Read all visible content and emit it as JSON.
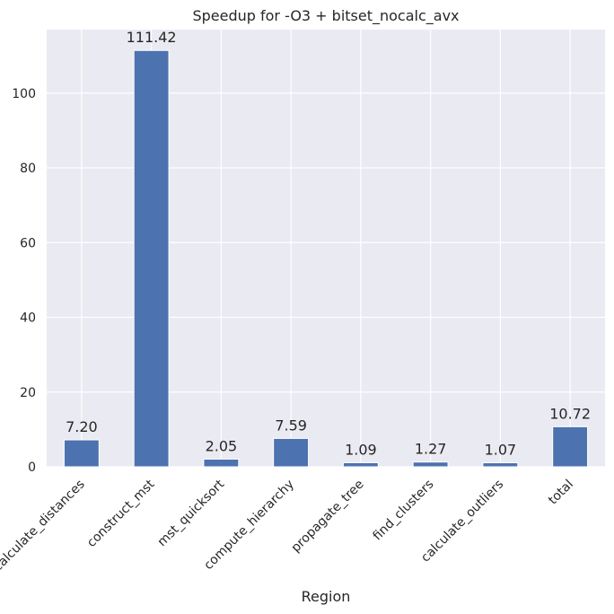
{
  "chart_data": {
    "type": "bar",
    "title": "Speedup for -O3 + bitset_nocalc_avx",
    "xlabel": "Region",
    "ylabel": "",
    "categories": [
      "calculate_distances",
      "construct_mst",
      "mst_quicksort",
      "compute_hierarchy",
      "propagate_tree",
      "find_clusters",
      "calculate_outliers",
      "total"
    ],
    "values": [
      7.2,
      111.42,
      2.05,
      7.59,
      1.09,
      1.27,
      1.07,
      10.72
    ],
    "data_labels": [
      "7.20",
      "111.42",
      "2.05",
      "7.59",
      "1.09",
      "1.27",
      "1.07",
      "10.72"
    ],
    "yticks": [
      0,
      20,
      40,
      60,
      80,
      100
    ],
    "ylim": [
      0,
      117
    ],
    "grid": true,
    "legend": "none",
    "colors": {
      "bar": "#4c72b0",
      "background": "#eaeaf2",
      "grid": "#ffffff"
    }
  }
}
